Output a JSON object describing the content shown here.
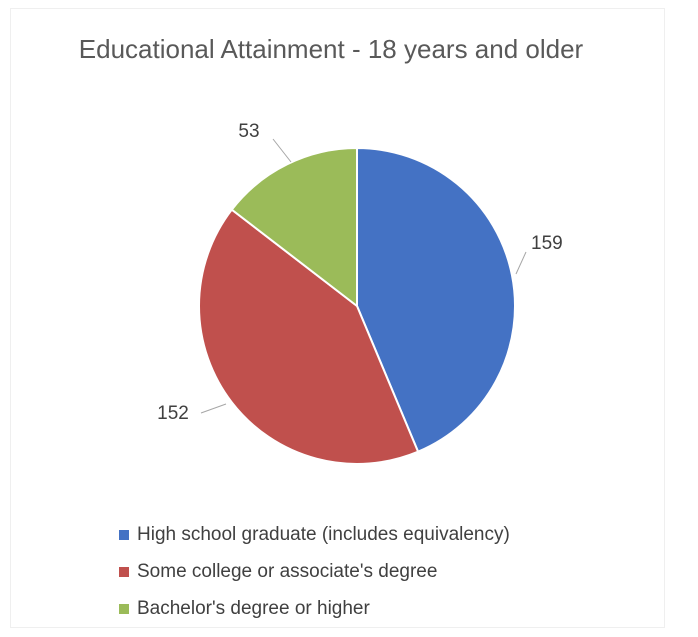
{
  "chart_data": {
    "type": "pie",
    "title": "Educational Attainment - 18 years and older",
    "categories": [
      "High school graduate (includes equivalency)",
      "Some college or associate's degree",
      "Bachelor's degree or higher"
    ],
    "values": [
      159,
      152,
      53
    ],
    "colors": [
      "#4472C4",
      "#C0504D",
      "#9BBB59"
    ],
    "legend_position": "bottom",
    "data_labels": [
      "159",
      "152",
      "53"
    ]
  }
}
